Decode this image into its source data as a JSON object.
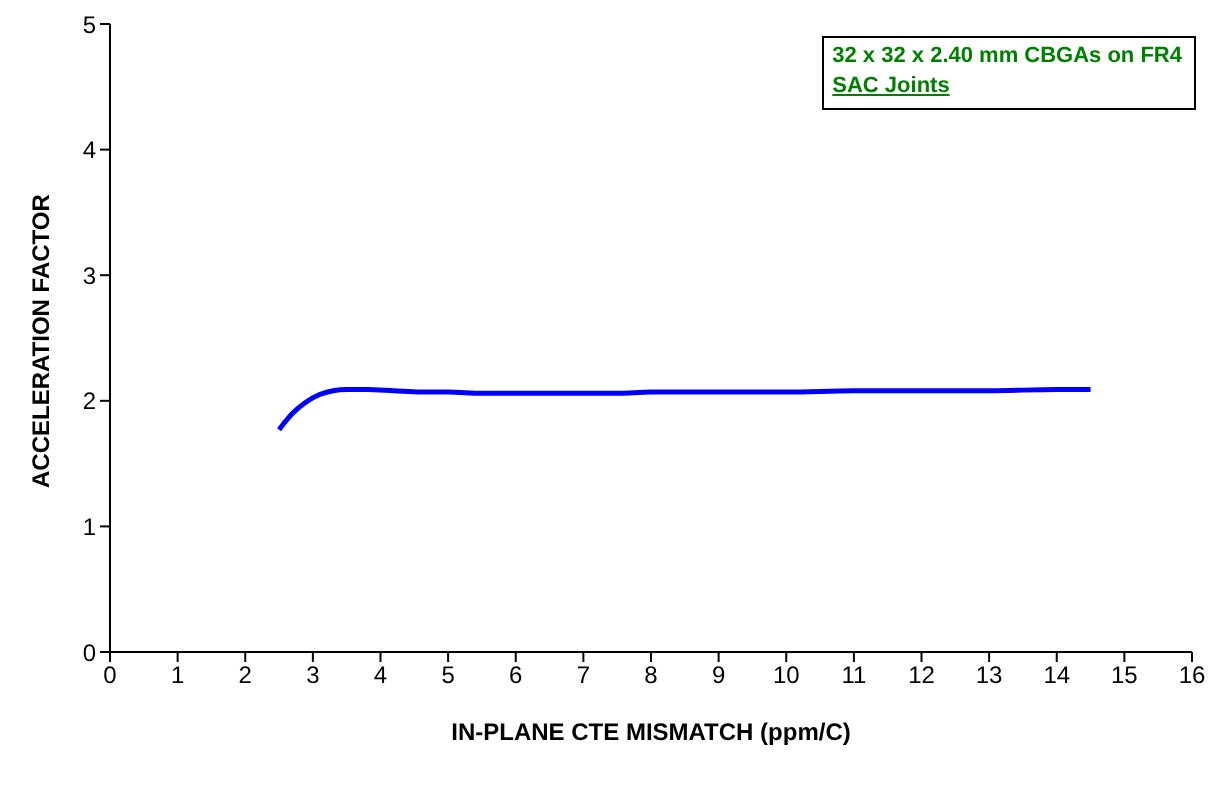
{
  "chart_data": {
    "type": "line",
    "xlabel": "IN-PLANE CTE MISMATCH (ppm/C)",
    "ylabel": "ACCELERATION FACTOR",
    "annotations": [
      "32 x 32 x 2.40 mm CBGAs on FR4",
      "SAC Joints"
    ],
    "x": [
      2.5,
      2.7,
      2.9,
      3.1,
      3.3,
      3.5,
      3.8,
      4.2,
      4.6,
      5,
      5.5,
      6,
      6.5,
      7,
      7.5,
      8,
      9,
      10,
      11,
      12,
      13,
      14,
      14.5
    ],
    "series": [
      {
        "color": "#0000ff",
        "values": [
          1.77,
          1.9,
          1.99,
          2.05,
          2.08,
          2.09,
          2.09,
          2.08,
          2.07,
          2.07,
          2.06,
          2.06,
          2.06,
          2.06,
          2.06,
          2.07,
          2.07,
          2.07,
          2.08,
          2.08,
          2.08,
          2.09,
          2.09
        ]
      }
    ],
    "xlim": [
      0,
      16
    ],
    "xticks": [
      0,
      1,
      2,
      3,
      4,
      5,
      6,
      7,
      8,
      9,
      10,
      11,
      12,
      13,
      14,
      15,
      16
    ],
    "ylim": [
      0,
      5
    ],
    "yticks": [
      0,
      1,
      2,
      3,
      4,
      5
    ],
    "grid": false,
    "marker": "none",
    "line_style": "solid"
  }
}
